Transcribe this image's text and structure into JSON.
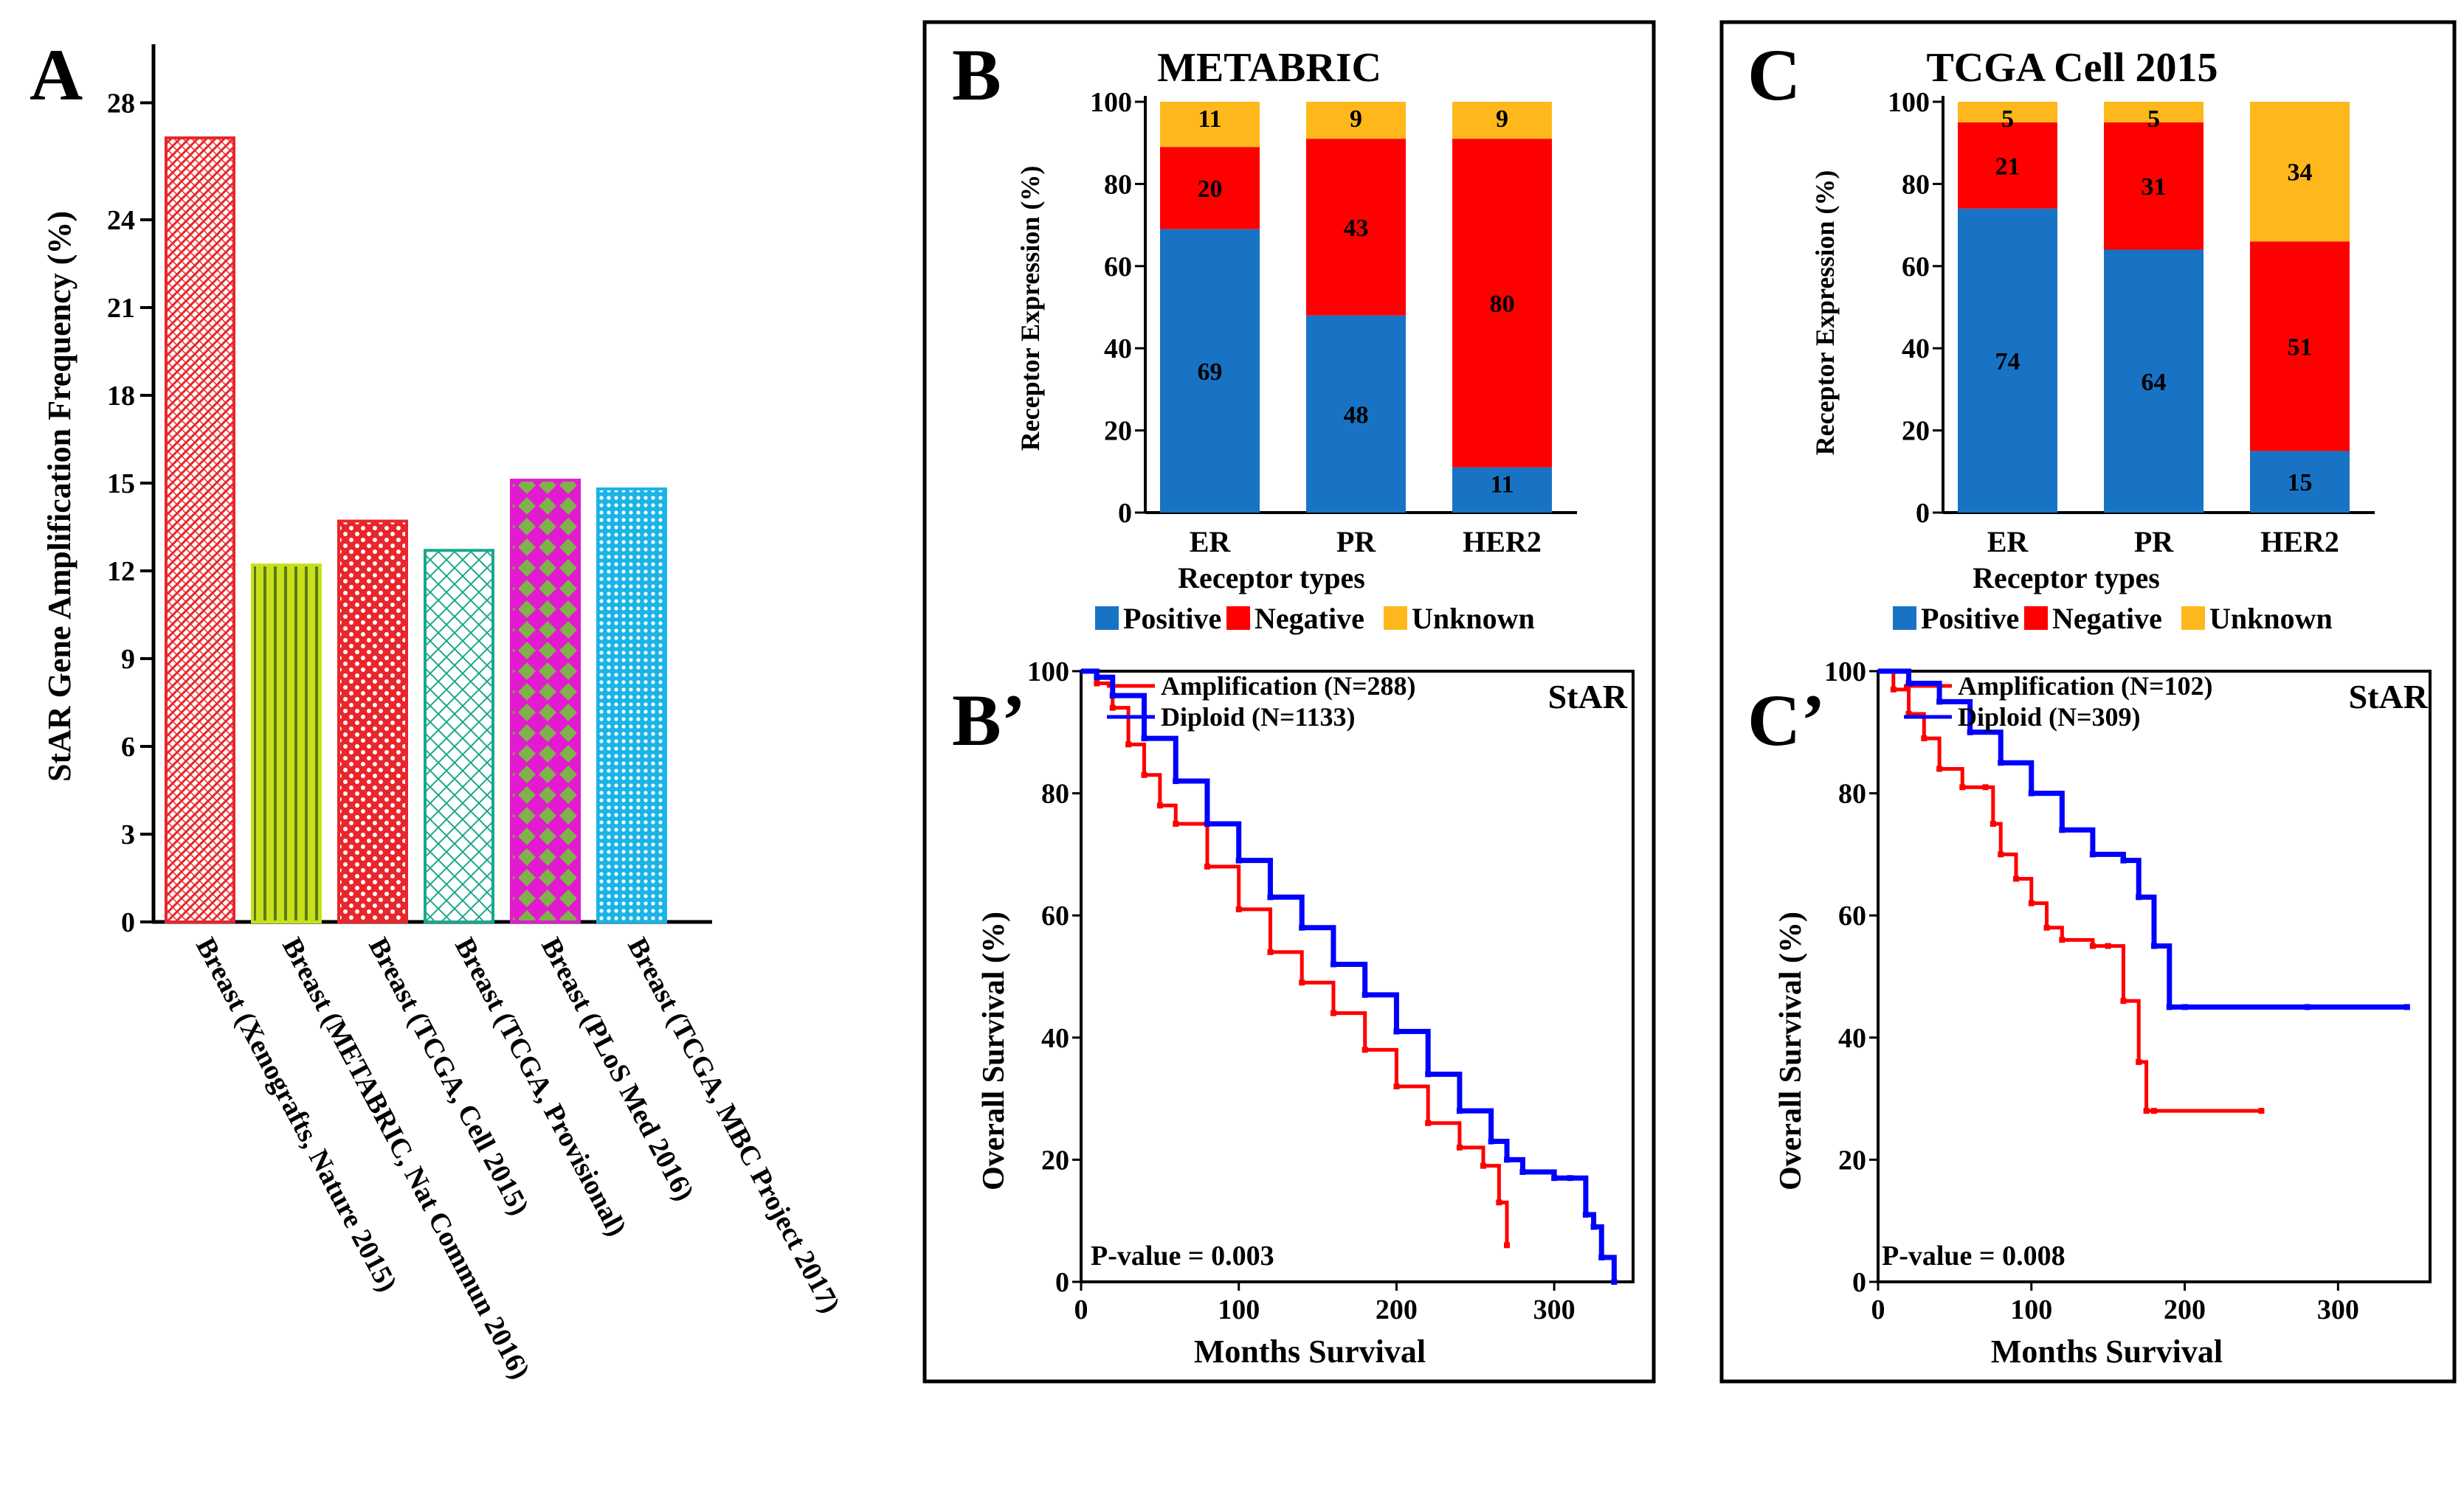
{
  "chart_data": [
    {
      "id": "A",
      "type": "bar",
      "panel_label": "A",
      "ylabel": "StAR Gene Amplification  Frequency (%)",
      "ylim": [
        0,
        30
      ],
      "yticks": [
        0,
        3,
        6,
        9,
        12,
        15,
        18,
        21,
        24,
        28
      ],
      "categories": [
        "Breast (Xenografts, Nature 2015)",
        "Breast (METABRIC, Nat Commun 2016)",
        "Breast (TCGA, Cell 2015)",
        "Breast (TCGA, Provisional)",
        "Breast (PLoS Med 2016)",
        "Breast (TCGA, MBC Project 2017)"
      ],
      "values": [
        26.8,
        12.2,
        13.7,
        12.7,
        15.1,
        14.8
      ],
      "colors": [
        "#e8262b",
        "#c8e01a",
        "#e8262b",
        "#1aa88c",
        "#e21ad0",
        "#1ab4e6"
      ]
    },
    {
      "id": "B",
      "type": "bar",
      "stacked": true,
      "panel_label": "B",
      "title": "METABRIC",
      "xlabel": "Receptor types",
      "ylabel": "Receptor Expression (%)",
      "ylim": [
        0,
        100
      ],
      "yticks": [
        0,
        20,
        40,
        60,
        80,
        100
      ],
      "categories": [
        "ER",
        "PR",
        "HER2"
      ],
      "series": [
        {
          "name": "Positive",
          "color": "#1873c5",
          "values": [
            69,
            48,
            11
          ]
        },
        {
          "name": "Negative",
          "color": "#ff0000",
          "values": [
            20,
            43,
            80
          ]
        },
        {
          "name": "Unknown",
          "color": "#ffb81c",
          "values": [
            11,
            9,
            9
          ]
        }
      ]
    },
    {
      "id": "C",
      "type": "bar",
      "stacked": true,
      "panel_label": "C",
      "title": "TCGA Cell 2015",
      "xlabel": "Receptor types",
      "ylabel": "Receptor Expression (%)",
      "ylim": [
        0,
        100
      ],
      "yticks": [
        0,
        20,
        40,
        60,
        80,
        100
      ],
      "categories": [
        "ER",
        "PR",
        "HER2"
      ],
      "series": [
        {
          "name": "Positive",
          "color": "#1873c5",
          "values": [
            74,
            64,
            15
          ]
        },
        {
          "name": "Negative",
          "color": "#ff0000",
          "values": [
            21,
            31,
            51
          ]
        },
        {
          "name": "Unknown",
          "color": "#ffb81c",
          "values": [
            5,
            5,
            34
          ]
        }
      ]
    },
    {
      "id": "Bp",
      "type": "line",
      "panel_label": "B’",
      "gene": "StAR",
      "xlabel": "Months Survival",
      "ylabel": "Overall Survival (%)",
      "xlim": [
        0,
        350
      ],
      "ylim": [
        0,
        100
      ],
      "xticks": [
        0,
        100,
        200,
        300
      ],
      "yticks": [
        0,
        20,
        40,
        60,
        80,
        100
      ],
      "p_value": "P-value = 0.003",
      "series": [
        {
          "name": "Amplification (N=288)",
          "color": "#ff0000",
          "x": [
            0,
            10,
            20,
            30,
            40,
            50,
            60,
            80,
            100,
            120,
            140,
            160,
            180,
            200,
            220,
            240,
            255,
            265,
            270
          ],
          "y": [
            100,
            98,
            94,
            88,
            83,
            78,
            75,
            68,
            61,
            54,
            49,
            44,
            38,
            32,
            26,
            22,
            19,
            13,
            6
          ]
        },
        {
          "name": "Diploid (N=1133)",
          "color": "#0000ff",
          "x": [
            0,
            10,
            20,
            40,
            60,
            80,
            100,
            120,
            140,
            160,
            180,
            200,
            220,
            240,
            260,
            270,
            280,
            300,
            310,
            320,
            325,
            330,
            338
          ],
          "y": [
            100,
            99,
            96,
            89,
            82,
            75,
            69,
            63,
            58,
            52,
            47,
            41,
            34,
            28,
            23,
            20,
            18,
            17,
            17,
            11,
            9,
            4,
            0
          ]
        }
      ]
    },
    {
      "id": "Cp",
      "type": "line",
      "panel_label": "C’",
      "gene": "StAR",
      "xlabel": "Months Survival",
      "ylabel": "Overall Survival (%)",
      "xlim": [
        0,
        360
      ],
      "ylim": [
        0,
        100
      ],
      "xticks": [
        0,
        100,
        200,
        300
      ],
      "yticks": [
        0,
        20,
        40,
        60,
        80,
        100
      ],
      "p_value": "P-value = 0.008",
      "series": [
        {
          "name": "Amplification (N=102)",
          "color": "#ff0000",
          "x": [
            0,
            10,
            20,
            30,
            40,
            55,
            70,
            75,
            80,
            90,
            100,
            110,
            120,
            140,
            150,
            160,
            170,
            175,
            180,
            250
          ],
          "y": [
            100,
            97,
            93,
            89,
            84,
            81,
            81,
            75,
            70,
            66,
            62,
            58,
            56,
            55,
            55,
            46,
            36,
            28,
            28,
            28
          ]
        },
        {
          "name": "Diploid (N=309)",
          "color": "#0000ff",
          "x": [
            0,
            20,
            40,
            60,
            80,
            100,
            120,
            140,
            160,
            170,
            180,
            190,
            200,
            280,
            345
          ],
          "y": [
            100,
            98,
            95,
            90,
            85,
            80,
            74,
            70,
            69,
            63,
            55,
            45,
            45,
            45,
            45
          ]
        }
      ]
    }
  ]
}
